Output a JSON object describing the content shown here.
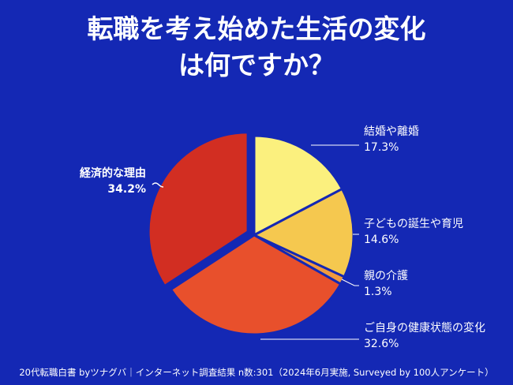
{
  "title_line1": "転職を考え始めた生活の変化",
  "title_line2": "は何ですか？",
  "footer": "20代転職白書 byツナグバ｜インターネット調査結果 n数:301（2024年6月実施, Surveyed by 100人アンケート）",
  "chart_data": {
    "type": "pie",
    "start_angle_deg": 0,
    "direction": "clockwise",
    "slices": [
      {
        "label": "結婚や離婚",
        "value": 17.3,
        "value_label": "17.3%",
        "color": "#fbf07e"
      },
      {
        "label": "子どもの誕生や育児",
        "value": 14.6,
        "value_label": "14.6%",
        "color": "#f5c84f"
      },
      {
        "label": "親の介護",
        "value": 1.3,
        "value_label": "1.3%",
        "color": "#f19a3e"
      },
      {
        "label": "ご自身の健康状態の変化",
        "value": 32.6,
        "value_label": "32.6%",
        "color": "#e8502c"
      },
      {
        "label": "経済的な理由",
        "value": 34.2,
        "value_label": "34.2%",
        "color": "#d22e22"
      }
    ]
  }
}
